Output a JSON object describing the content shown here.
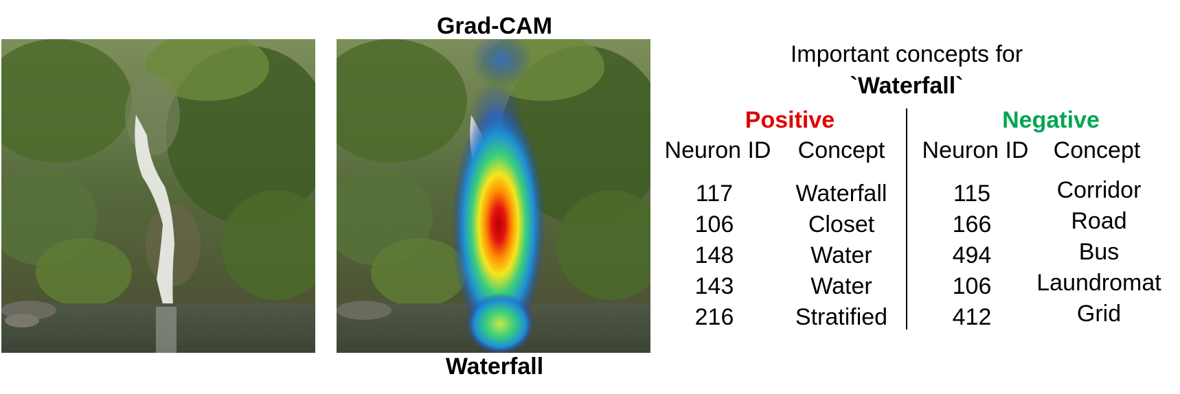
{
  "gradcam_title": "Grad-CAM",
  "class_label": "Waterfall",
  "concepts_title_line1": "Important concepts for",
  "concepts_title_line2": "`Waterfall`",
  "positive": {
    "heading": "Positive",
    "color": "#e00000",
    "col_id_header": "Neuron ID",
    "col_concept_header": "Concept",
    "rows": [
      {
        "id": "117",
        "concept": "Waterfall"
      },
      {
        "id": "106",
        "concept": "Closet"
      },
      {
        "id": "148",
        "concept": "Water"
      },
      {
        "id": "143",
        "concept": "Water"
      },
      {
        "id": "216",
        "concept": "Stratified"
      }
    ]
  },
  "negative": {
    "heading": "Negative",
    "color": "#00a651",
    "col_id_header": "Neuron ID",
    "col_concept_header": "Concept",
    "rows": [
      {
        "id": "115",
        "concept": "Corridor"
      },
      {
        "id": "166",
        "concept": "Road"
      },
      {
        "id": "494",
        "concept": "Bus"
      },
      {
        "id": "106",
        "concept": "Laundromat"
      },
      {
        "id": "412",
        "concept": "Grid"
      }
    ]
  }
}
